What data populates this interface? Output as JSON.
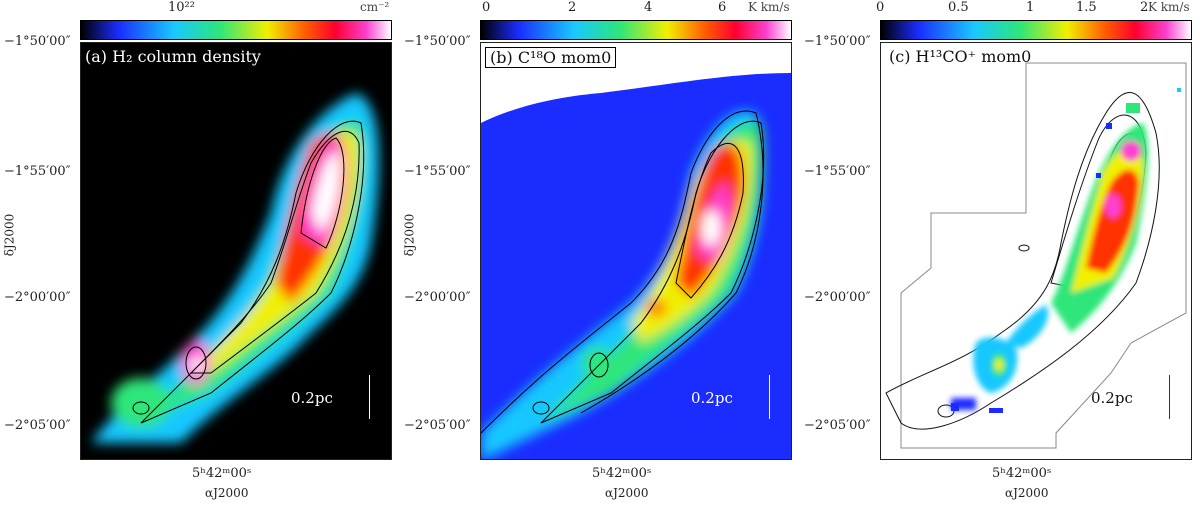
{
  "panels": [
    {
      "title": "(a) H₂ column density",
      "colorbar": {
        "ticks": [
          "10²²"
        ],
        "unit": "cm⁻²"
      },
      "scale_bar": "0.2pc",
      "dec_labels": [
        "−1°50′00″",
        "−1°55′00″",
        "−2°00′00″",
        "−2°05′00″"
      ],
      "ra_label": "5ʰ42ᵐ00ˢ",
      "ra_axis": "αJ2000",
      "dec_axis": "δJ2000"
    },
    {
      "title": "(b) C¹⁸O mom0",
      "colorbar": {
        "ticks": [
          "0",
          "2",
          "4",
          "6"
        ],
        "unit": "K km/s"
      },
      "scale_bar": "0.2pc",
      "dec_labels": [
        "−1°50′00″",
        "−1°55′00″",
        "−2°00′00″",
        "−2°05′00″"
      ],
      "ra_label": "5ʰ42ᵐ00ˢ",
      "ra_axis": "αJ2000",
      "dec_axis": "δJ2000"
    },
    {
      "title": "(c) H¹³CO⁺ mom0",
      "colorbar": {
        "ticks": [
          "0",
          "0.5",
          "1",
          "1.5",
          "2"
        ],
        "unit": "K km/s"
      },
      "scale_bar": "0.2pc",
      "dec_labels": [
        "−1°50′00″",
        "−1°55′00″",
        "−2°00′00″",
        "−2°05′00″"
      ],
      "ra_label": "5ʰ42ᵐ00ˢ",
      "ra_axis": "αJ2000"
    }
  ],
  "colors": {
    "colormap": [
      "#000000",
      "#1a2cff",
      "#19c8ff",
      "#2fe67a",
      "#f0f000",
      "#ff8000",
      "#ff0000",
      "#ff1fb4",
      "#ffffff"
    ]
  }
}
